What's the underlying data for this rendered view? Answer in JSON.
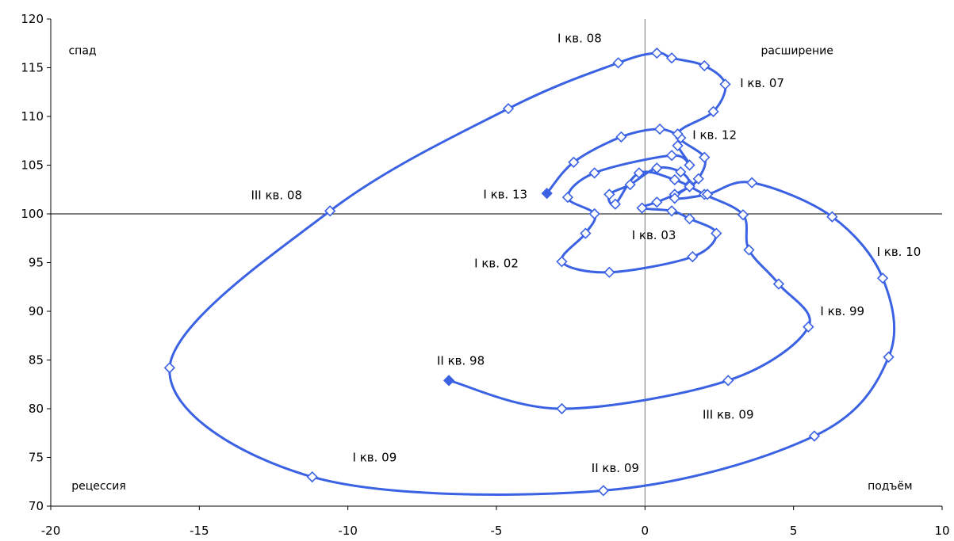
{
  "chart_data": {
    "type": "line",
    "xlim": [
      -20,
      10
    ],
    "ylim": [
      70,
      120
    ],
    "x_ticks": [
      -20,
      -15,
      -10,
      -5,
      0,
      5,
      10
    ],
    "y_ticks": [
      70,
      75,
      80,
      85,
      90,
      95,
      100,
      105,
      110,
      115,
      120
    ],
    "reference_lines": {
      "x": 0,
      "y": 100
    },
    "grid": false,
    "legend": "none",
    "series_color": "#3b62e3",
    "series": [
      {
        "points": [
          {
            "x": -6.6,
            "y": 82.9,
            "marker": "filled"
          },
          {
            "x": -2.8,
            "y": 80.0
          },
          {
            "x": 2.8,
            "y": 82.9
          },
          {
            "x": 5.5,
            "y": 88.4
          },
          {
            "x": 4.5,
            "y": 92.8
          },
          {
            "x": 3.5,
            "y": 96.3
          },
          {
            "x": 3.3,
            "y": 99.9
          },
          {
            "x": 2.0,
            "y": 102.0
          },
          {
            "x": 1.0,
            "y": 103.5
          },
          {
            "x": -0.2,
            "y": 104.2
          },
          {
            "x": -1.0,
            "y": 101.0
          },
          {
            "x": -1.2,
            "y": 102.0
          },
          {
            "x": -0.5,
            "y": 103.0
          },
          {
            "x": 0.4,
            "y": 104.7
          },
          {
            "x": 1.2,
            "y": 104.3
          },
          {
            "x": 1.5,
            "y": 103.0
          },
          {
            "x": 1.0,
            "y": 102.0
          },
          {
            "x": 0.4,
            "y": 101.2
          },
          {
            "x": -0.1,
            "y": 100.6
          },
          {
            "x": 0.9,
            "y": 100.3
          },
          {
            "x": 1.5,
            "y": 99.5
          },
          {
            "x": 2.4,
            "y": 98.0
          },
          {
            "x": 1.6,
            "y": 95.6
          },
          {
            "x": -1.2,
            "y": 94.0
          },
          {
            "x": -2.8,
            "y": 95.1
          },
          {
            "x": -2.0,
            "y": 98.0
          },
          {
            "x": -1.7,
            "y": 100.0
          },
          {
            "x": -2.6,
            "y": 101.7
          },
          {
            "x": -1.7,
            "y": 104.2
          },
          {
            "x": 0.9,
            "y": 106.0
          },
          {
            "x": 1.5,
            "y": 105.0
          },
          {
            "x": 1.1,
            "y": 107.0
          },
          {
            "x": 1.2,
            "y": 107.8
          },
          {
            "x": 0.5,
            "y": 108.7
          },
          {
            "x": -0.8,
            "y": 107.9
          },
          {
            "x": -2.4,
            "y": 105.3
          },
          {
            "x": -3.3,
            "y": 102.1,
            "marker": "filled"
          }
        ]
      },
      {
        "points": [
          {
            "x": 1.5,
            "y": 102.8
          },
          {
            "x": 1.0,
            "y": 101.6
          },
          {
            "x": 2.1,
            "y": 102.0
          },
          {
            "x": 3.6,
            "y": 103.2
          },
          {
            "x": 6.3,
            "y": 99.7
          },
          {
            "x": 8.0,
            "y": 93.4
          },
          {
            "x": 8.2,
            "y": 85.3
          },
          {
            "x": 5.7,
            "y": 77.2
          },
          {
            "x": -1.4,
            "y": 71.6
          },
          {
            "x": -11.2,
            "y": 73.0
          },
          {
            "x": -16.0,
            "y": 84.2
          },
          {
            "x": -10.6,
            "y": 100.3
          },
          {
            "x": -4.6,
            "y": 110.8
          },
          {
            "x": -0.9,
            "y": 115.5
          },
          {
            "x": 0.4,
            "y": 116.5
          },
          {
            "x": 0.9,
            "y": 116.0
          },
          {
            "x": 2.0,
            "y": 115.2
          },
          {
            "x": 2.7,
            "y": 113.3
          },
          {
            "x": 2.3,
            "y": 110.5
          },
          {
            "x": 1.1,
            "y": 108.2
          },
          {
            "x": 2.0,
            "y": 105.8
          },
          {
            "x": 1.8,
            "y": 103.6
          },
          {
            "x": 1.5,
            "y": 102.8
          }
        ]
      }
    ],
    "annotations": [
      {
        "text": "I кв. 08",
        "x": -2.2,
        "y": 117.6,
        "anchor": "middle"
      },
      {
        "text": "I кв. 07",
        "x": 3.2,
        "y": 113.0,
        "anchor": "start"
      },
      {
        "text": "I кв. 12",
        "x": 1.6,
        "y": 107.7,
        "anchor": "start"
      },
      {
        "text": "III кв. 08",
        "x": -12.4,
        "y": 101.5,
        "anchor": "middle"
      },
      {
        "text": "I кв. 13",
        "x": -4.7,
        "y": 101.6,
        "anchor": "middle"
      },
      {
        "text": "I кв. 03",
        "x": 0.3,
        "y": 97.4,
        "anchor": "middle"
      },
      {
        "text": "I кв. 02",
        "x": -5.0,
        "y": 94.5,
        "anchor": "middle"
      },
      {
        "text": "I кв. 10",
        "x": 7.8,
        "y": 95.7,
        "anchor": "start"
      },
      {
        "text": "I кв. 99",
        "x": 5.9,
        "y": 89.6,
        "anchor": "start"
      },
      {
        "text": "II кв. 98",
        "x": -6.2,
        "y": 84.5,
        "anchor": "middle"
      },
      {
        "text": "III кв. 09",
        "x": 2.8,
        "y": 79.0,
        "anchor": "middle"
      },
      {
        "text": "I кв. 09",
        "x": -9.1,
        "y": 74.6,
        "anchor": "middle"
      },
      {
        "text": "II кв. 09",
        "x": -1.0,
        "y": 73.5,
        "anchor": "middle"
      }
    ],
    "quadrant_labels": [
      {
        "text": "спад",
        "x": -19.4,
        "y": 116.4,
        "anchor": "start"
      },
      {
        "text": "расширение",
        "x": 3.9,
        "y": 116.4,
        "anchor": "start"
      },
      {
        "text": "рецессия",
        "x": -19.3,
        "y": 71.7,
        "anchor": "start"
      },
      {
        "text": "подъём",
        "x": 9.0,
        "y": 71.7,
        "anchor": "end"
      }
    ]
  }
}
